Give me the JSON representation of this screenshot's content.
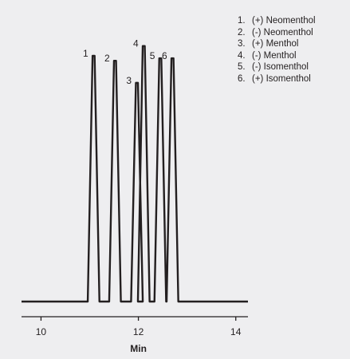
{
  "chart_data": {
    "type": "line",
    "title": "",
    "xlabel": "Min",
    "ylabel": "",
    "xlim": [
      9.6,
      14.25
    ],
    "ylim": [
      0,
      100
    ],
    "x_ticks": [
      {
        "value": 10,
        "label": "10"
      },
      {
        "value": 12,
        "label": "12"
      },
      {
        "value": 14,
        "label": "14"
      }
    ],
    "grid": false,
    "baseline": 0,
    "peaks": [
      {
        "label": "1",
        "compound": "(+) Neomenthol",
        "retention_time": 11.08,
        "height": 100
      },
      {
        "label": "2",
        "compound": "(-) Neomenthol",
        "retention_time": 11.52,
        "height": 98
      },
      {
        "label": "3",
        "compound": "(+) Menthol",
        "retention_time": 11.97,
        "height": 89
      },
      {
        "label": "4",
        "compound": "(-) Menthol",
        "retention_time": 12.11,
        "height": 104
      },
      {
        "label": "5",
        "compound": "(-) Isomenthol",
        "retention_time": 12.45,
        "height": 99
      },
      {
        "label": "6",
        "compound": "(+) Isomenthol",
        "retention_time": 12.7,
        "height": 99
      }
    ],
    "legend": {
      "placement": "top-right",
      "entries": [
        {
          "number": "1.",
          "label": "(+) Neomenthol"
        },
        {
          "number": "2.",
          "label": "(-) Neomenthol"
        },
        {
          "number": "3.",
          "label": "(+) Menthol"
        },
        {
          "number": "4.",
          "label": "(-) Menthol"
        },
        {
          "number": "5.",
          "label": "(-) Isomenthol"
        },
        {
          "number": "6.",
          "label": "(+) Isomenthol"
        }
      ]
    },
    "colors": {
      "trace": "#231f20",
      "axis": "#231f20",
      "background": "#eeeef0"
    }
  }
}
